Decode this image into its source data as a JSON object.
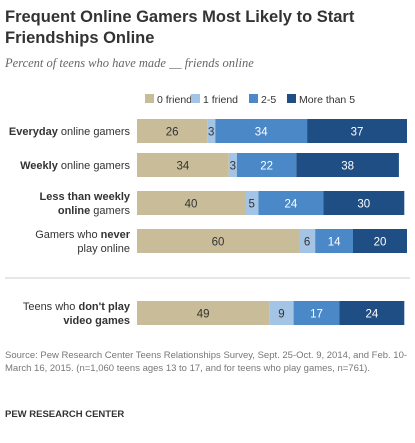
{
  "header": {
    "title": "Frequent Online Gamers Most Likely to Start Friendships Online",
    "subtitle": "Percent of teens who have made __ friends online"
  },
  "footer": {
    "source": "Source: Pew Research Center Teens Relationships Survey, Sept. 25-Oct. 9, 2014, and Feb. 10-March 16, 2015. (n=1,060 teens ages 13 to 17, and for teens who play games, n=761).",
    "org": "PEW RESEARCH CENTER"
  },
  "chart_data": {
    "type": "bar",
    "orientation": "horizontal",
    "stacked": true,
    "title": "Frequent Online Gamers Most Likely to Start Friendships Online",
    "subtitle": "Percent of teens who have made __ friends online",
    "legend_position": "top",
    "grid": false,
    "categories": [
      [
        {
          "t": "Everyday",
          "b": true
        },
        {
          "t": " online gamers",
          "b": false
        }
      ],
      [
        {
          "t": "Weekly",
          "b": true
        },
        {
          "t": " online gamers",
          "b": false
        }
      ],
      [
        {
          "t": "Less than weekly",
          "b": true
        },
        {
          "t": "\n",
          "b": false
        },
        {
          "t": "online",
          "b": true
        },
        {
          "t": " gamers",
          "b": false
        }
      ],
      [
        {
          "t": "Gamers who ",
          "b": false
        },
        {
          "t": "never",
          "b": true
        },
        {
          "t": "\nplay online",
          "b": false
        }
      ],
      [
        {
          "t": "Teens who ",
          "b": false
        },
        {
          "t": "don't play",
          "b": true
        },
        {
          "t": "\n",
          "b": false
        },
        {
          "t": "video games",
          "b": true
        }
      ]
    ],
    "series": [
      {
        "name": "0 friends",
        "color": "#c9bc99",
        "label_color": "#333333",
        "values": [
          26,
          34,
          40,
          60,
          49
        ]
      },
      {
        "name": "1 friend",
        "color": "#a4c4e6",
        "label_color": "#333333",
        "values": [
          3,
          3,
          5,
          6,
          9
        ]
      },
      {
        "name": "2-5",
        "color": "#4b88c7",
        "label_color": "#ffffff",
        "values": [
          34,
          22,
          24,
          14,
          17
        ]
      },
      {
        "name": "More than 5",
        "color": "#1f4e85",
        "label_color": "#ffffff",
        "values": [
          37,
          38,
          30,
          20,
          24
        ]
      }
    ]
  }
}
